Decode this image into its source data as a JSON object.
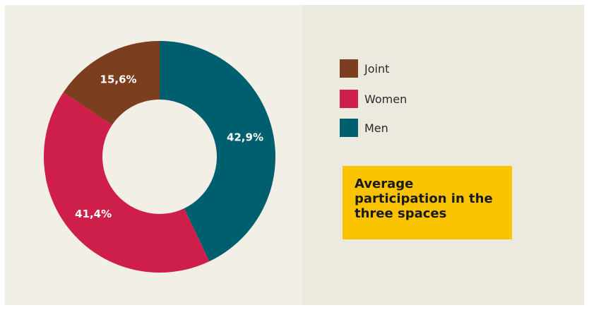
{
  "chart_data": {
    "type": "pie",
    "variant": "donut",
    "title": "Average participation in the three spaces",
    "legend_position": "right",
    "slices": [
      {
        "name": "Men",
        "value": 42.9,
        "label": "42,9%",
        "color": "#005f6e"
      },
      {
        "name": "Women",
        "value": 41.4,
        "label": "41,4%",
        "color": "#cd1f4a"
      },
      {
        "name": "Joint",
        "value": 15.6,
        "label": "15,6%",
        "color": "#7b3f20"
      }
    ],
    "legend": [
      {
        "name": "Joint",
        "color": "#7b3f20"
      },
      {
        "name": "Women",
        "color": "#cd1f4a"
      },
      {
        "name": "Men",
        "color": "#005f6e"
      }
    ]
  },
  "colors": {
    "background": "#f2efe6",
    "panel": "#ece9df",
    "title_box": "#f9c300"
  }
}
